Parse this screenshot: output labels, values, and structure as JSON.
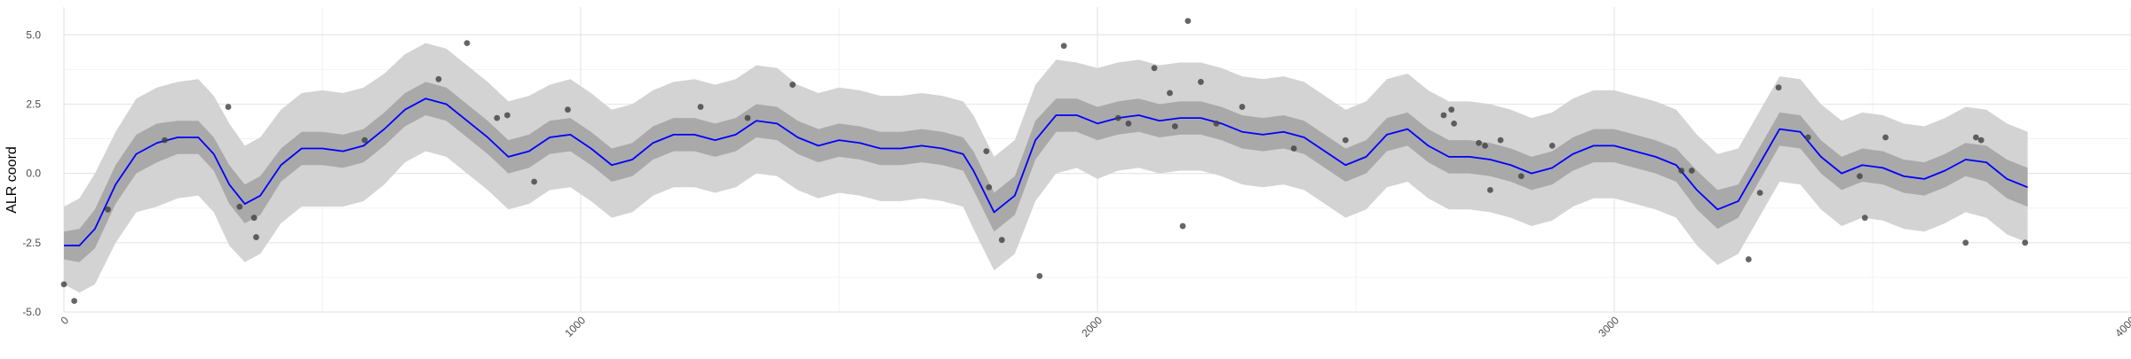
{
  "chart_data": {
    "type": "line",
    "title": "",
    "xlabel": "",
    "ylabel": "ALR coord",
    "xlim": [
      0,
      4000
    ],
    "ylim": [
      -5,
      6
    ],
    "grid": true,
    "x_ticks": [
      0,
      1000,
      2000,
      3000,
      4000
    ],
    "x_tick_labels": [
      "0",
      "1000",
      "2000",
      "3000",
      "4000"
    ],
    "y_ticks": [
      -5,
      -2.5,
      0,
      2.5,
      5
    ],
    "y_tick_labels": [
      "-5.0",
      "-2.5",
      "0.0",
      "2.5",
      "5.0"
    ],
    "colors": {
      "mean_line": "#0000ff",
      "inner_band": "#a9a9a9",
      "outer_band": "#d3d3d3",
      "points": "#404040",
      "grid_major": "#e6e6e6",
      "grid_minor": "#f2f2f2"
    },
    "mean": {
      "x": [
        0,
        30,
        60,
        100,
        140,
        180,
        220,
        260,
        290,
        320,
        350,
        380,
        420,
        460,
        500,
        540,
        580,
        620,
        660,
        700,
        740,
        780,
        820,
        860,
        900,
        940,
        980,
        1020,
        1060,
        1100,
        1140,
        1180,
        1220,
        1260,
        1300,
        1340,
        1380,
        1420,
        1460,
        1500,
        1540,
        1580,
        1620,
        1660,
        1700,
        1740,
        1760,
        1800,
        1840,
        1880,
        1920,
        1960,
        2000,
        2040,
        2080,
        2120,
        2160,
        2200,
        2240,
        2280,
        2320,
        2360,
        2400,
        2440,
        2480,
        2520,
        2560,
        2600,
        2640,
        2680,
        2720,
        2760,
        2800,
        2840,
        2880,
        2920,
        2960,
        3000,
        3040,
        3080,
        3120,
        3160,
        3200,
        3240,
        3280,
        3320,
        3360,
        3400,
        3440,
        3480,
        3520,
        3560,
        3600,
        3640,
        3680,
        3720,
        3760,
        3800
      ],
      "y": [
        -2.6,
        -2.6,
        -2.0,
        -0.4,
        0.7,
        1.1,
        1.3,
        1.3,
        0.7,
        -0.4,
        -1.1,
        -0.8,
        0.3,
        0.9,
        0.9,
        0.8,
        1.0,
        1.6,
        2.3,
        2.7,
        2.5,
        1.9,
        1.3,
        0.6,
        0.8,
        1.3,
        1.4,
        0.9,
        0.3,
        0.5,
        1.1,
        1.4,
        1.4,
        1.2,
        1.4,
        1.9,
        1.8,
        1.3,
        1.0,
        1.2,
        1.1,
        0.9,
        0.9,
        1.0,
        0.9,
        0.7,
        0.1,
        -1.4,
        -0.8,
        1.2,
        2.1,
        2.1,
        1.8,
        2.0,
        2.1,
        1.9,
        2.0,
        2.0,
        1.8,
        1.5,
        1.4,
        1.5,
        1.3,
        0.8,
        0.3,
        0.6,
        1.4,
        1.6,
        1.0,
        0.6,
        0.6,
        0.5,
        0.3,
        0.0,
        0.2,
        0.7,
        1.0,
        1.0,
        0.8,
        0.6,
        0.3,
        -0.6,
        -1.3,
        -1.0,
        0.3,
        1.6,
        1.5,
        0.6,
        0.0,
        0.3,
        0.2,
        -0.1,
        -0.2,
        0.1,
        0.5,
        0.4,
        -0.2,
        -0.5
      ]
    },
    "inner_band": {
      "lower": [
        -3.1,
        -3.2,
        -2.7,
        -1.1,
        0.0,
        0.4,
        0.7,
        0.7,
        0.1,
        -1.1,
        -1.8,
        -1.5,
        -0.3,
        0.3,
        0.3,
        0.2,
        0.4,
        1.0,
        1.7,
        2.1,
        1.9,
        1.3,
        0.7,
        0.0,
        0.2,
        0.7,
        0.8,
        0.3,
        -0.3,
        -0.1,
        0.5,
        0.8,
        0.8,
        0.6,
        0.8,
        1.3,
        1.2,
        0.7,
        0.4,
        0.6,
        0.5,
        0.3,
        0.3,
        0.4,
        0.3,
        0.1,
        -0.6,
        -2.1,
        -1.5,
        0.5,
        1.5,
        1.5,
        1.2,
        1.4,
        1.5,
        1.3,
        1.4,
        1.4,
        1.2,
        0.9,
        0.8,
        0.9,
        0.7,
        0.2,
        -0.3,
        0.0,
        0.8,
        1.0,
        0.4,
        0.0,
        0.0,
        -0.1,
        -0.3,
        -0.6,
        -0.4,
        0.1,
        0.4,
        0.4,
        0.2,
        0.0,
        -0.3,
        -1.3,
        -2.0,
        -1.6,
        -0.3,
        1.0,
        0.9,
        0.0,
        -0.6,
        -0.3,
        -0.4,
        -0.7,
        -0.8,
        -0.5,
        -0.1,
        -0.3,
        -0.9,
        -1.2
      ],
      "upper": [
        -2.1,
        -2.0,
        -1.3,
        0.3,
        1.4,
        1.8,
        1.9,
        1.9,
        1.3,
        0.3,
        -0.4,
        -0.1,
        0.9,
        1.5,
        1.5,
        1.4,
        1.6,
        2.2,
        2.9,
        3.3,
        3.1,
        2.5,
        1.9,
        1.2,
        1.4,
        1.9,
        2.0,
        1.5,
        0.9,
        1.1,
        1.7,
        2.0,
        2.0,
        1.8,
        2.0,
        2.5,
        2.4,
        1.9,
        1.6,
        1.8,
        1.7,
        1.5,
        1.5,
        1.6,
        1.5,
        1.3,
        0.8,
        -0.7,
        -0.1,
        1.9,
        2.7,
        2.7,
        2.4,
        2.6,
        2.7,
        2.5,
        2.6,
        2.6,
        2.4,
        2.1,
        2.0,
        2.1,
        1.9,
        1.4,
        0.9,
        1.2,
        2.0,
        2.2,
        1.6,
        1.2,
        1.2,
        1.1,
        0.9,
        0.6,
        0.8,
        1.3,
        1.6,
        1.6,
        1.4,
        1.2,
        0.9,
        0.1,
        -0.6,
        -0.4,
        0.9,
        2.2,
        2.1,
        1.2,
        0.6,
        0.9,
        0.8,
        0.5,
        0.4,
        0.7,
        1.1,
        1.0,
        0.5,
        0.2
      ]
    },
    "outer_band": {
      "lower": [
        -4.0,
        -4.3,
        -4.0,
        -2.5,
        -1.4,
        -1.2,
        -0.9,
        -0.8,
        -1.4,
        -2.6,
        -3.2,
        -2.9,
        -1.8,
        -1.2,
        -1.2,
        -1.2,
        -1.0,
        -0.4,
        0.4,
        0.8,
        0.6,
        0.0,
        -0.6,
        -1.3,
        -1.1,
        -0.6,
        -0.5,
        -1.0,
        -1.6,
        -1.4,
        -0.8,
        -0.5,
        -0.5,
        -0.7,
        -0.5,
        0.0,
        -0.1,
        -0.6,
        -0.9,
        -0.7,
        -0.8,
        -1.0,
        -1.0,
        -0.9,
        -1.0,
        -1.2,
        -2.0,
        -3.5,
        -2.9,
        -1.0,
        0.0,
        0.2,
        -0.2,
        0.1,
        0.2,
        0.0,
        0.1,
        0.1,
        -0.1,
        -0.4,
        -0.5,
        -0.4,
        -0.6,
        -1.1,
        -1.6,
        -1.3,
        -0.5,
        -0.3,
        -0.9,
        -1.3,
        -1.3,
        -1.4,
        -1.6,
        -1.9,
        -1.7,
        -1.2,
        -0.9,
        -0.9,
        -1.1,
        -1.3,
        -1.6,
        -2.6,
        -3.3,
        -2.9,
        -1.6,
        -0.3,
        -0.4,
        -1.3,
        -1.9,
        -1.6,
        -1.7,
        -2.0,
        -2.1,
        -1.8,
        -1.4,
        -1.6,
        -2.2,
        -2.5
      ],
      "upper": [
        -1.2,
        -0.9,
        0.0,
        1.5,
        2.7,
        3.1,
        3.3,
        3.4,
        2.8,
        1.8,
        1.0,
        1.3,
        2.3,
        2.9,
        3.0,
        2.9,
        3.1,
        3.6,
        4.3,
        4.7,
        4.5,
        3.9,
        3.3,
        2.6,
        2.8,
        3.2,
        3.4,
        2.9,
        2.3,
        2.5,
        3.0,
        3.3,
        3.4,
        3.2,
        3.4,
        3.9,
        3.8,
        3.2,
        2.9,
        3.1,
        3.0,
        2.8,
        2.8,
        2.9,
        2.8,
        2.6,
        2.1,
        0.6,
        1.2,
        3.2,
        4.1,
        4.0,
        3.8,
        4.0,
        4.1,
        3.9,
        4.0,
        4.0,
        3.8,
        3.5,
        3.4,
        3.5,
        3.3,
        2.8,
        2.3,
        2.6,
        3.4,
        3.6,
        3.0,
        2.6,
        2.6,
        2.5,
        2.3,
        2.0,
        2.2,
        2.7,
        3.0,
        3.0,
        2.8,
        2.6,
        2.3,
        1.4,
        0.7,
        0.9,
        2.2,
        3.5,
        3.4,
        2.5,
        1.9,
        2.2,
        2.1,
        1.8,
        1.7,
        2.0,
        2.4,
        2.3,
        1.8,
        1.5
      ]
    },
    "points": {
      "x": [
        0,
        20,
        85,
        195,
        318,
        340,
        368,
        372,
        582,
        725,
        780,
        838,
        858,
        910,
        975,
        1232,
        1323,
        1410,
        1785,
        1790,
        1815,
        1888,
        1935,
        2040,
        2060,
        2110,
        2140,
        2150,
        2165,
        2175,
        2200,
        2230,
        2280,
        2380,
        2480,
        2670,
        2685,
        2690,
        2738,
        2750,
        2760,
        2780,
        2820,
        2880,
        3130,
        3150,
        3260,
        3282,
        3318,
        3375,
        3475,
        3485,
        3525,
        3680,
        3700,
        3710,
        3795
      ],
      "y": [
        -4.0,
        -4.6,
        -1.3,
        1.2,
        2.4,
        -1.2,
        -1.6,
        -2.3,
        1.2,
        3.4,
        4.7,
        2.0,
        2.1,
        -0.3,
        2.3,
        2.4,
        2.0,
        3.2,
        0.8,
        -0.5,
        -2.4,
        -3.7,
        4.6,
        2.0,
        1.8,
        3.8,
        2.9,
        1.7,
        -1.9,
        5.5,
        3.3,
        1.8,
        2.4,
        0.9,
        1.2,
        2.1,
        2.3,
        1.8,
        1.1,
        1.0,
        -0.6,
        1.2,
        -0.1,
        1.0,
        0.1,
        0.1,
        -3.1,
        -0.7,
        3.1,
        1.3,
        -0.1,
        -1.6,
        1.3,
        -2.5,
        1.3,
        1.2,
        -2.5
      ]
    }
  }
}
